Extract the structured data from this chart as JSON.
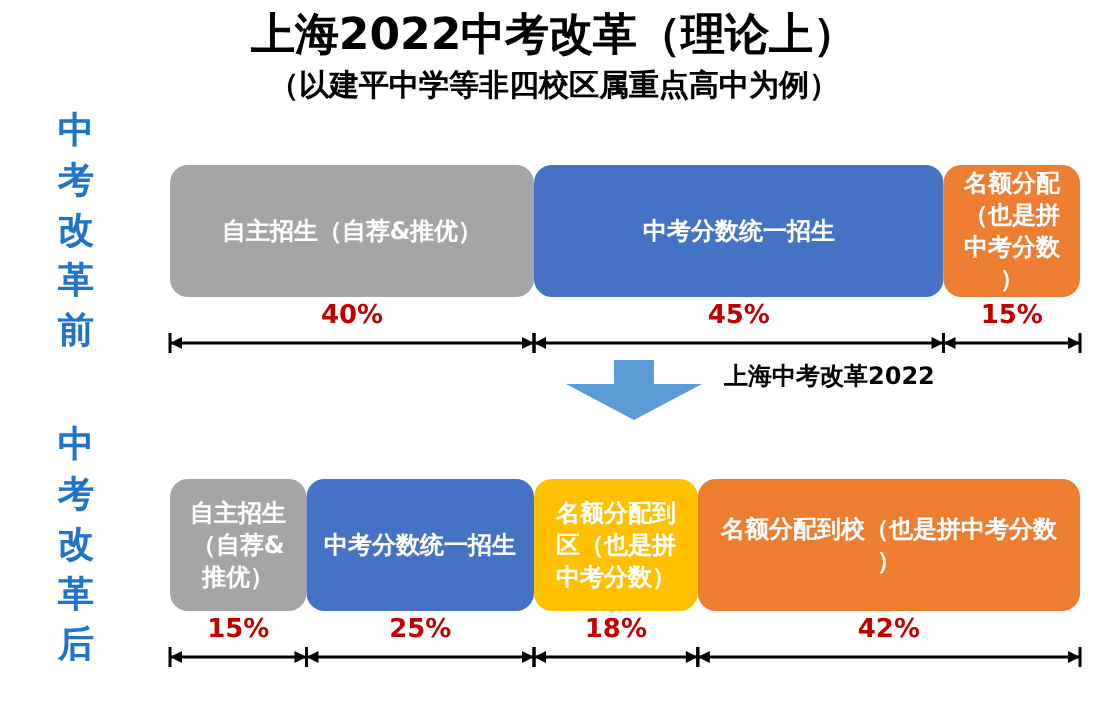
{
  "chart_data": {
    "type": "bar",
    "orientation": "horizontal",
    "stacked": true,
    "title": "上海2022中考改革（理论上）",
    "subtitle": "（以建平中学等非四校区属重点高中为例）",
    "categories": [
      "中考改革前",
      "中考改革后"
    ],
    "series": [
      {
        "name": "自主招生（自荐&推优）",
        "color": "#a5a5a5",
        "values": [
          40,
          15
        ],
        "value_labels": [
          "40%",
          "15%"
        ]
      },
      {
        "name": "中考分数统一招生",
        "color": "#4472c4",
        "values": [
          45,
          25
        ],
        "value_labels": [
          "45%",
          "25%"
        ]
      },
      {
        "name": "名额分配（也是拼中考分数）",
        "color": "#ed7d31",
        "values": [
          15,
          null
        ],
        "value_labels": [
          "15%",
          null
        ]
      },
      {
        "name": "名额分配到区（也是拼中考分数）",
        "color": "#ffc000",
        "values": [
          null,
          18
        ],
        "value_labels": [
          null,
          "18%"
        ]
      },
      {
        "name": "名额分配到校（也是拼中考分数）",
        "color": "#ed7d31",
        "values": [
          null,
          42
        ],
        "value_labels": [
          null,
          "42%"
        ]
      }
    ],
    "annotations": [
      "上海中考改革2022"
    ],
    "legend": false
  }
}
